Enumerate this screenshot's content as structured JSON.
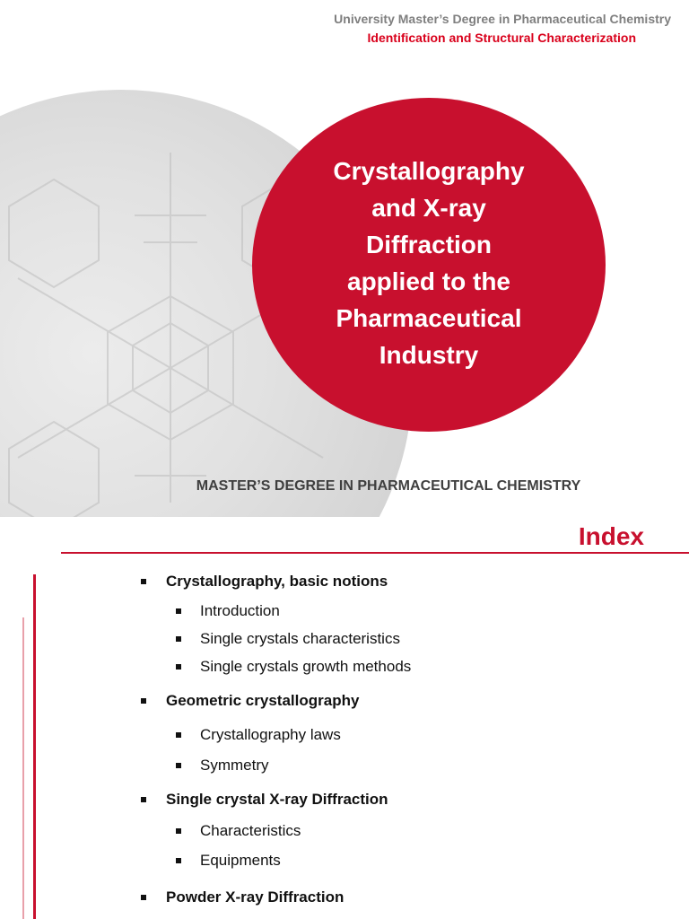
{
  "slide1": {
    "header_line1": "University Master’s Degree in Pharmaceutical Chemistry",
    "header_line2": "Identification and Structural Characterization",
    "title_lines": [
      "Crystallography",
      "and X-ray",
      "Diffraction",
      "applied to the",
      "Pharmaceutical",
      "Industry"
    ],
    "subtitle": "MASTER’S DEGREE IN PHARMACEUTICAL CHEMISTRY",
    "colors": {
      "accent_red": "#c8102e",
      "header_gray": "#7f7f7f"
    }
  },
  "slide2": {
    "title": "Index",
    "items": [
      {
        "level": 1,
        "text": "Crystallography, basic notions"
      },
      {
        "level": 2,
        "text": "Introduction"
      },
      {
        "level": 2,
        "text": "Single crystals characteristics"
      },
      {
        "level": 2,
        "text": "Single crystals growth methods"
      },
      {
        "level": 1,
        "text": "Geometric crystallography"
      },
      {
        "level": 2,
        "text": "Crystallography laws"
      },
      {
        "level": 2,
        "text": "Symmetry"
      },
      {
        "level": 1,
        "text": "Single crystal X-ray Diffraction"
      },
      {
        "level": 2,
        "text": "Characteristics"
      },
      {
        "level": 2,
        "text": "Equipments"
      },
      {
        "level": 1,
        "text": "Powder X-ray Diffraction"
      }
    ]
  }
}
